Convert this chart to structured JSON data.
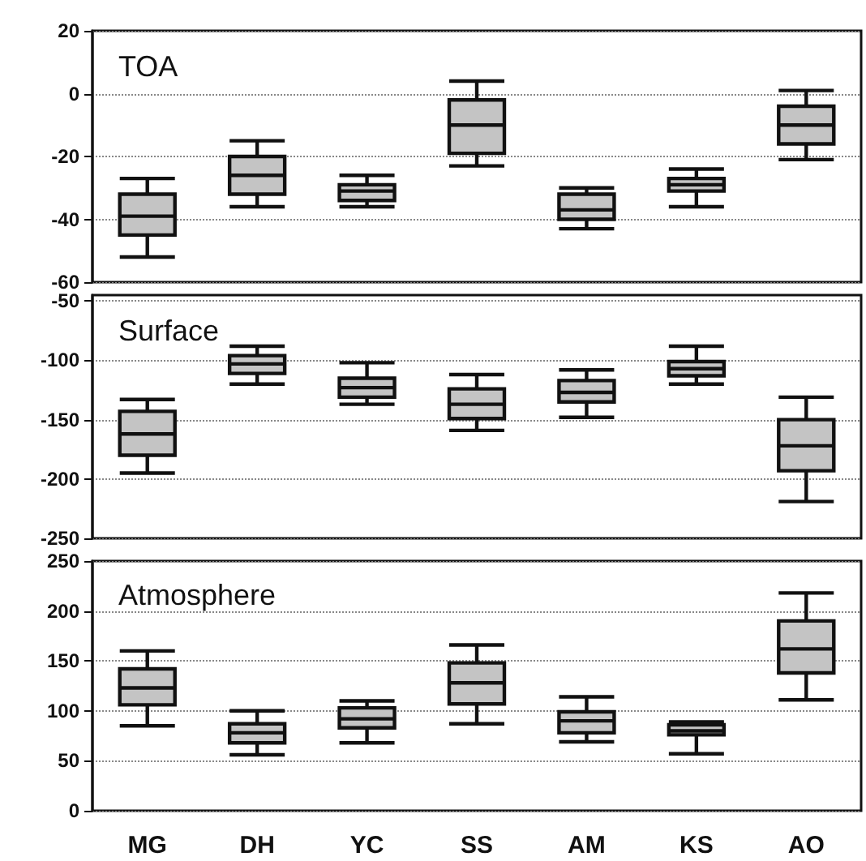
{
  "chart_data": [
    {
      "type": "box",
      "title": "TOA",
      "categories": [
        null,
        null,
        null,
        null,
        null,
        null,
        null
      ],
      "color": "#c4c4c4",
      "ylim": [
        -60,
        20
      ],
      "yticks": [
        -60,
        -40,
        -20,
        0,
        20
      ],
      "grid": "y",
      "tick_labels": "y",
      "boxes": [
        {
          "low": -52,
          "q1": -45,
          "median": -39,
          "q3": -32,
          "high": -27
        },
        {
          "low": -36,
          "q1": -32,
          "median": -26,
          "q3": -20,
          "high": -15
        },
        {
          "low": -36,
          "q1": -34,
          "median": -31,
          "q3": -29,
          "high": -26
        },
        {
          "low": -23,
          "q1": -19,
          "median": -10,
          "q3": -2,
          "high": 4
        },
        {
          "low": -43,
          "q1": -40,
          "median": -37,
          "q3": -32,
          "high": -30
        },
        {
          "low": -36,
          "q1": -31,
          "median": -29,
          "q3": -27,
          "high": -24
        },
        {
          "low": -21,
          "q1": -16,
          "median": -10,
          "q3": -4,
          "high": 1
        }
      ]
    },
    {
      "type": "box",
      "title": "Surface",
      "categories": [
        null,
        null,
        null,
        null,
        null,
        null,
        null
      ],
      "color": "#c4c4c4",
      "ylim": [
        -250,
        -45
      ],
      "yticks": [
        -250,
        -200,
        -150,
        -100,
        -50
      ],
      "grid": "y",
      "tick_labels": "y",
      "boxes": [
        {
          "low": -195,
          "q1": -180,
          "median": -162,
          "q3": -143,
          "high": -133
        },
        {
          "low": -120,
          "q1": -111,
          "median": -103,
          "q3": -96,
          "high": -88
        },
        {
          "low": -137,
          "q1": -131,
          "median": -123,
          "q3": -115,
          "high": -102
        },
        {
          "low": -159,
          "q1": -149,
          "median": -137,
          "q3": -124,
          "high": -112
        },
        {
          "low": -148,
          "q1": -135,
          "median": -127,
          "q3": -117,
          "high": -108
        },
        {
          "low": -120,
          "q1": -113,
          "median": -107,
          "q3": -101,
          "high": -88
        },
        {
          "low": -219,
          "q1": -193,
          "median": -172,
          "q3": -150,
          "high": -131
        }
      ]
    },
    {
      "type": "box",
      "title": "Atmosphere",
      "categories": [
        "MG",
        "DH",
        "YC",
        "SS",
        "AM",
        "KS",
        "AO"
      ],
      "color": "#c4c4c4",
      "ylim": [
        0,
        250
      ],
      "yticks": [
        0,
        50,
        100,
        150,
        200,
        250
      ],
      "grid": "y",
      "boxes": [
        {
          "low": 85,
          "q1": 106,
          "median": 123,
          "q3": 142,
          "high": 160
        },
        {
          "low": 56,
          "q1": 68,
          "median": 78,
          "q3": 87,
          "high": 100
        },
        {
          "low": 68,
          "q1": 83,
          "median": 92,
          "q3": 103,
          "high": 110
        },
        {
          "low": 87,
          "q1": 107,
          "median": 128,
          "q3": 148,
          "high": 166
        },
        {
          "low": 69,
          "q1": 78,
          "median": 90,
          "q3": 99,
          "high": 114
        },
        {
          "low": 57,
          "q1": 76,
          "median": 80,
          "q3": 86,
          "high": 89
        },
        {
          "low": 111,
          "q1": 138,
          "median": 162,
          "q3": 190,
          "high": 218
        }
      ]
    }
  ]
}
